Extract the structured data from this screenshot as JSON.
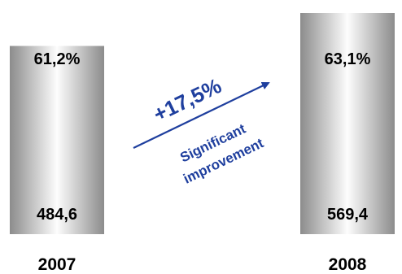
{
  "chart_data": {
    "type": "bar",
    "categories": [
      "2007",
      "2008"
    ],
    "values": [
      484.6,
      569.4
    ],
    "value_labels": [
      "484,6",
      "569,4"
    ],
    "top_labels": [
      "61,2%",
      "63,1%"
    ],
    "growth": {
      "label": "+17,5%",
      "caption_line1": "Significant",
      "caption_line2": "improvement"
    },
    "colors": {
      "bar_dark": "#8c8c8c",
      "bar_light": "#fdfdfd",
      "arrow": "#1f3f9e",
      "text": "#000000"
    }
  }
}
